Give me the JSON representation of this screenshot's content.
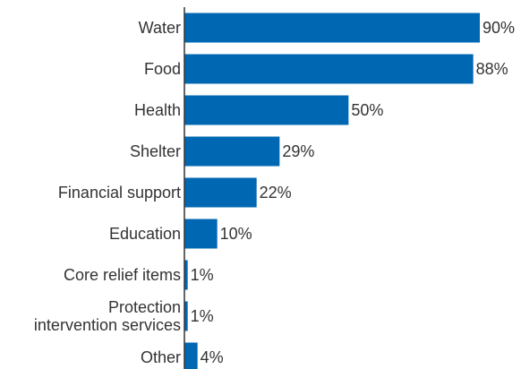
{
  "chart_data": {
    "type": "bar",
    "orientation": "horizontal",
    "categories": [
      [
        "Water"
      ],
      [
        "Food"
      ],
      [
        "Health"
      ],
      [
        "Shelter"
      ],
      [
        "Financial support"
      ],
      [
        "Education"
      ],
      [
        "Core relief items"
      ],
      [
        "Protection",
        "intervention services"
      ],
      [
        "Other"
      ]
    ],
    "values": [
      90,
      88,
      50,
      29,
      22,
      10,
      1,
      1,
      4
    ],
    "value_labels": [
      "90%",
      "88%",
      "50%",
      "29%",
      "22%",
      "10%",
      "1%",
      "1%",
      "4%"
    ],
    "title": "",
    "xlabel": "",
    "ylabel": "",
    "xlim": [
      0,
      90
    ],
    "grid": false,
    "legend": "none",
    "bar_color": "#0068B2",
    "axis_color": "#333333"
  }
}
